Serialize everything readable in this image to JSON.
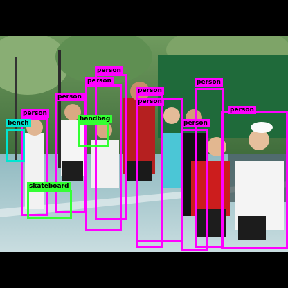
{
  "colors": {
    "person": "#ff00ff",
    "bench": "#00e5d0",
    "handbag": "#33ff33",
    "skateboard": "#33ff33",
    "frame": "#000000"
  },
  "detections": [
    {
      "label": "person"
    },
    {
      "label": "person"
    },
    {
      "label": "person"
    },
    {
      "label": "person"
    },
    {
      "label": "person"
    },
    {
      "label": "person"
    },
    {
      "label": "person"
    },
    {
      "label": "person"
    },
    {
      "label": "person"
    },
    {
      "label": "bench"
    },
    {
      "label": "handbag"
    },
    {
      "label": "skateboard"
    }
  ]
}
